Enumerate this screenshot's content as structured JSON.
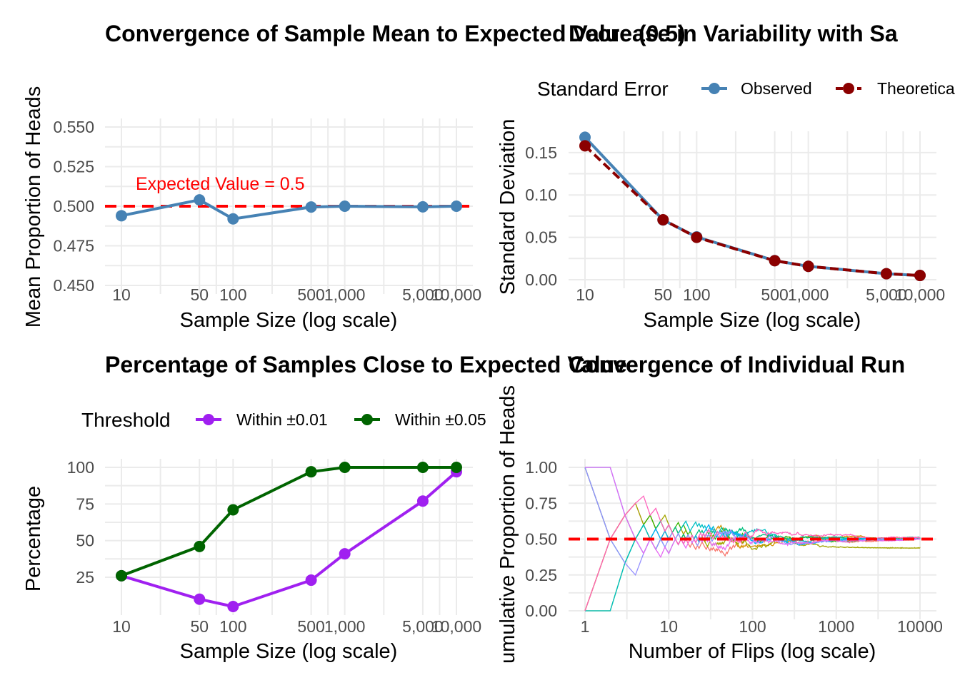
{
  "chart_data": [
    {
      "type": "line",
      "title": "Convergence of Sample Mean to Expected Value (0.5)",
      "xlabel": "Sample Size (log scale)",
      "ylabel": "Mean Proportion of Heads",
      "x_scale": "log10",
      "x_ticks": [
        10,
        50,
        100,
        500,
        1000,
        5000,
        10000
      ],
      "x_tick_labels": [
        "10",
        "50",
        "100",
        "500",
        "1,000",
        "5,000",
        "10,000"
      ],
      "y_ticks": [
        0.45,
        0.475,
        0.5,
        0.525,
        0.55
      ],
      "y_tick_labels": [
        "0.450",
        "0.475",
        "0.500",
        "0.525",
        "0.550"
      ],
      "xlim": [
        10,
        10000
      ],
      "ylim": [
        0.45,
        0.55
      ],
      "series": [
        {
          "x": [
            10,
            50,
            100,
            500,
            1000,
            5000,
            10000
          ],
          "values": [
            0.494,
            0.504,
            0.492,
            0.4995,
            0.5,
            0.4996,
            0.5
          ],
          "color": "#4682b4"
        }
      ],
      "reference_line": {
        "y": 0.5,
        "color": "#ff0000",
        "style": "dashed"
      },
      "annotation": {
        "text": "Expected Value = 0.5",
        "x": 11,
        "y": 0.511,
        "color": "#ff0000"
      },
      "grid": true
    },
    {
      "type": "line",
      "title": "Decrease in Variability with Sa",
      "xlabel": "Sample Size (log scale)",
      "ylabel": "Standard Deviation",
      "x_scale": "log10",
      "x_ticks": [
        10,
        50,
        100,
        500,
        1000,
        5000,
        10000
      ],
      "x_tick_labels": [
        "10",
        "50",
        "100",
        "500",
        "1,000",
        "5,000",
        "10,000"
      ],
      "y_ticks": [
        0,
        0.05,
        0.1,
        0.15
      ],
      "y_tick_labels": [
        "0.00",
        "0.05",
        "0.10",
        "0.15"
      ],
      "xlim": [
        10,
        10000
      ],
      "ylim": [
        0,
        0.165
      ],
      "legend": {
        "title": "Standard Error",
        "position": "top"
      },
      "series": [
        {
          "name": "Observed",
          "x": [
            10,
            50,
            100,
            500,
            1000,
            5000,
            10000
          ],
          "values": [
            0.168,
            0.0705,
            0.0505,
            0.0225,
            0.0158,
            0.0071,
            0.005
          ],
          "color": "#4682b4",
          "style": "solid"
        },
        {
          "name": "Theoretica",
          "x": [
            10,
            50,
            100,
            500,
            1000,
            5000,
            10000
          ],
          "values": [
            0.158,
            0.0707,
            0.05,
            0.0224,
            0.0158,
            0.0071,
            0.005
          ],
          "color": "#8b0000",
          "style": "dashed"
        }
      ],
      "grid": true
    },
    {
      "type": "line",
      "title": "Percentage of Samples Close to Expected Value",
      "xlabel": "Sample Size (log scale)",
      "ylabel": "Percentage",
      "x_scale": "log10",
      "x_ticks": [
        10,
        50,
        100,
        500,
        1000,
        5000,
        10000
      ],
      "x_tick_labels": [
        "10",
        "50",
        "100",
        "500",
        "1,000",
        "5,000",
        "10,000"
      ],
      "y_ticks": [
        25,
        50,
        75,
        100
      ],
      "y_tick_labels": [
        "25",
        "50",
        "75",
        "100"
      ],
      "xlim": [
        10,
        10000
      ],
      "ylim": [
        5,
        100
      ],
      "legend": {
        "title": "Threshold",
        "position": "top"
      },
      "series": [
        {
          "name": "Within ±0.01",
          "x": [
            10,
            50,
            100,
            500,
            1000,
            5000,
            10000
          ],
          "values": [
            26,
            10,
            5,
            23,
            41,
            77,
            97
          ],
          "color": "#a020f0"
        },
        {
          "name": "Within ±0.05",
          "x": [
            10,
            50,
            100,
            500,
            1000,
            5000,
            10000
          ],
          "values": [
            26,
            46,
            71,
            97,
            100,
            100,
            100
          ],
          "color": "#006400"
        }
      ],
      "grid": true
    },
    {
      "type": "line",
      "title": "Convergence of Individual Run",
      "xlabel": "Number of Flips (log scale)",
      "ylabel": "umulative Proportion of Heads",
      "x_scale": "log10",
      "x_ticks": [
        1,
        10,
        100,
        1000,
        10000
      ],
      "x_tick_labels": [
        "1",
        "10",
        "100",
        "1000",
        "10000"
      ],
      "y_ticks": [
        0,
        0.25,
        0.5,
        0.75,
        1
      ],
      "y_tick_labels": [
        "0.00",
        "0.25",
        "0.50",
        "0.75",
        "1.00"
      ],
      "xlim": [
        1,
        10000
      ],
      "ylim": [
        0,
        1
      ],
      "runs": [
        {
          "color": "#f8766d",
          "first_flips": [
            1,
            0,
            1,
            1,
            0,
            1,
            0,
            0,
            1,
            1,
            0,
            0,
            1,
            0,
            1,
            0,
            0,
            0,
            1,
            0
          ],
          "seed": 11
        },
        {
          "color": "#d89000",
          "first_flips": [
            0,
            1,
            1,
            0,
            1,
            0,
            0,
            1,
            1,
            0,
            1,
            0,
            0,
            1,
            1,
            1,
            0,
            0,
            1,
            0
          ],
          "seed": 23
        },
        {
          "color": "#a3a500",
          "first_flips": [
            0,
            1,
            1,
            1,
            0,
            1,
            0,
            1,
            1,
            0,
            0,
            1,
            0,
            1,
            0,
            0,
            1,
            0,
            1,
            0
          ],
          "seed": 37
        },
        {
          "color": "#39b600",
          "first_flips": [
            0,
            0,
            1,
            1,
            1,
            1,
            0,
            1,
            0,
            0,
            1,
            1,
            1,
            0,
            1,
            0,
            0,
            1,
            0,
            0
          ],
          "seed": 41
        },
        {
          "color": "#00bf7d",
          "first_flips": [
            1,
            0,
            0,
            1,
            1,
            0,
            1,
            1,
            0,
            1,
            0,
            1,
            0,
            0,
            1,
            0,
            1,
            0,
            1,
            0
          ],
          "seed": 53
        },
        {
          "color": "#00bfc4",
          "first_flips": [
            0,
            0,
            1,
            1,
            1,
            0,
            0,
            1,
            0,
            0,
            1,
            1,
            1,
            1,
            1,
            1,
            0,
            0,
            1,
            1
          ],
          "seed": 67
        },
        {
          "color": "#00b0f6",
          "first_flips": [
            1,
            1,
            0,
            0,
            0,
            1,
            1,
            0,
            1,
            0,
            1,
            0,
            0,
            1,
            0,
            1,
            1,
            0,
            0,
            1
          ],
          "seed": 71
        },
        {
          "color": "#9590ff",
          "first_flips": [
            1,
            0,
            0,
            0,
            1,
            1,
            0,
            1,
            0,
            1,
            1,
            0,
            1,
            0,
            0,
            1,
            1,
            0,
            1,
            0
          ],
          "seed": 83
        },
        {
          "color": "#e76bf3",
          "first_flips": [
            1,
            1,
            0,
            0,
            0,
            1,
            0,
            0,
            1,
            0,
            1,
            1,
            0,
            1,
            0,
            0,
            1,
            1,
            0,
            1
          ],
          "seed": 97
        },
        {
          "color": "#ff62bc",
          "first_flips": [
            0,
            1,
            1,
            1,
            1,
            0,
            1,
            0,
            0,
            1,
            0,
            0,
            0,
            1,
            0,
            1,
            0,
            1,
            1,
            0
          ],
          "seed": 101
        }
      ],
      "reference_line": {
        "y": 0.5,
        "color": "#ff0000",
        "style": "dashed"
      },
      "grid": true
    }
  ]
}
